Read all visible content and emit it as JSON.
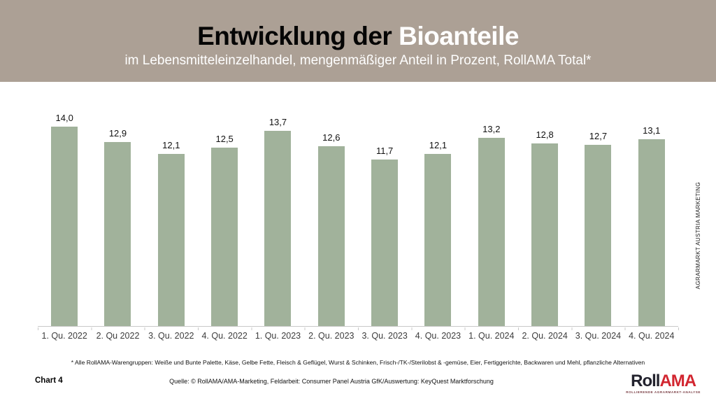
{
  "header": {
    "title_black": "Entwicklung der",
    "title_white": "Bioanteile",
    "subtitle": "im Lebensmitteleinzelhandel, mengenmäßiger Anteil in Prozent, RollAMA Total*",
    "bg_color": "#aca095"
  },
  "chart_data": {
    "type": "bar",
    "categories": [
      "1. Qu. 2022",
      "2. Qu 2022",
      "3. Qu. 2022",
      "4. Qu. 2022",
      "1. Qu. 2023",
      "2. Qu. 2023",
      "3. Qu. 2023",
      "4. Qu. 2023",
      "1. Qu. 2024",
      "2. Qu. 2024",
      "3. Qu. 2024",
      "4. Qu. 2024"
    ],
    "values": [
      14.0,
      12.9,
      12.1,
      12.5,
      13.7,
      12.6,
      11.7,
      12.1,
      13.2,
      12.8,
      12.7,
      13.1
    ],
    "value_labels": [
      "14,0",
      "12,9",
      "12,1",
      "12,5",
      "13,7",
      "12,6",
      "11,7",
      "12,1",
      "13,2",
      "12,8",
      "12,7",
      "13,1"
    ],
    "title": "Entwicklung der Bioanteile",
    "xlabel": "",
    "ylabel": "",
    "ylim": [
      0,
      16.2
    ],
    "bar_color": "#a1b29b",
    "grid": false,
    "legend": false,
    "data_labels": true
  },
  "side_text": "AGRARMARKT AUSTRIA MARKETING",
  "footnote": "* Alle RollAMA-Warengruppen: Weiße und Bunte Palette, Käse, Gelbe Fette, Fleisch & Geflügel, Wurst & Schinken, Frisch-/TK-/Sterilobst & -gemüse, Eier, Fertiggerichte, Backwaren und Mehl, pflanzliche Alternativen",
  "footer": {
    "chart_label": "Chart 4",
    "source": "Quelle: © RollAMA/AMA-Marketing, Feldarbeit: Consumer Panel Austria GfK/Auswertung: KeyQuest Marktforschung"
  },
  "logo": {
    "part1": "Roll",
    "part2": "AMA",
    "tagline": "ROLLIERENDE AGRARMARKT-ANALYSE",
    "color_dark": "#23232e",
    "color_red": "#d22630"
  }
}
